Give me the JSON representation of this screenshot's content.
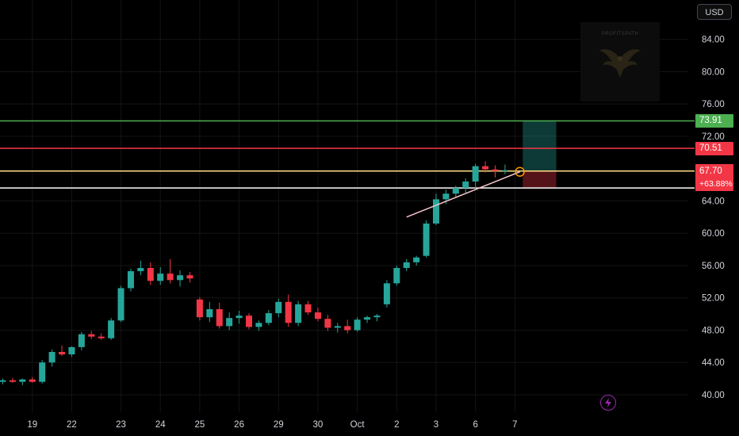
{
  "header": {
    "currency": "USD"
  },
  "watermark": {
    "text": "PROFITSPATH"
  },
  "chart_data": {
    "type": "candlestick",
    "ylim": [
      38.0,
      88.0
    ],
    "y_ticks": [
      40,
      44,
      48,
      52,
      56,
      60,
      64,
      72,
      76,
      80,
      84
    ],
    "x_ticks": [
      {
        "label": "19",
        "index": 3
      },
      {
        "label": "22",
        "index": 7
      },
      {
        "label": "23",
        "index": 12
      },
      {
        "label": "24",
        "index": 16
      },
      {
        "label": "25",
        "index": 20
      },
      {
        "label": "26",
        "index": 24
      },
      {
        "label": "29",
        "index": 28
      },
      {
        "label": "30",
        "index": 32
      },
      {
        "label": "Oct",
        "index": 36
      },
      {
        "label": "2",
        "index": 40
      },
      {
        "label": "3",
        "index": 44
      },
      {
        "label": "6",
        "index": 48
      },
      {
        "label": "7",
        "index": 52
      }
    ],
    "candles": [
      [
        41.6,
        42.0,
        41.3,
        41.8
      ],
      [
        41.8,
        42.1,
        41.5,
        41.6
      ],
      [
        41.6,
        42.0,
        41.2,
        41.9
      ],
      [
        41.9,
        42.2,
        41.5,
        41.6
      ],
      [
        41.6,
        44.3,
        41.4,
        44.0
      ],
      [
        44.0,
        45.6,
        43.5,
        45.3
      ],
      [
        45.3,
        46.1,
        44.8,
        45.0
      ],
      [
        45.0,
        46.0,
        44.7,
        45.9
      ],
      [
        45.9,
        47.8,
        45.5,
        47.5
      ],
      [
        47.5,
        47.9,
        46.9,
        47.2
      ],
      [
        47.2,
        47.6,
        46.8,
        47.0
      ],
      [
        47.0,
        49.5,
        46.8,
        49.2
      ],
      [
        49.2,
        53.5,
        49.0,
        53.2
      ],
      [
        53.2,
        55.6,
        52.8,
        55.3
      ],
      [
        55.3,
        56.6,
        54.8,
        55.7
      ],
      [
        55.7,
        56.4,
        53.6,
        54.1
      ],
      [
        54.1,
        55.8,
        53.6,
        55.0
      ],
      [
        55.0,
        56.8,
        53.8,
        54.2
      ],
      [
        54.2,
        55.4,
        53.4,
        54.8
      ],
      [
        54.8,
        55.2,
        53.9,
        54.4
      ],
      [
        51.8,
        52.1,
        49.2,
        49.6
      ],
      [
        49.6,
        51.5,
        49.0,
        50.6
      ],
      [
        50.6,
        51.4,
        48.2,
        48.5
      ],
      [
        48.5,
        50.2,
        48.0,
        49.5
      ],
      [
        49.5,
        50.4,
        48.8,
        49.8
      ],
      [
        49.8,
        50.1,
        48.1,
        48.4
      ],
      [
        48.4,
        49.2,
        47.9,
        48.9
      ],
      [
        48.9,
        50.5,
        48.6,
        50.1
      ],
      [
        50.1,
        51.9,
        49.6,
        51.5
      ],
      [
        51.5,
        52.4,
        48.4,
        48.9
      ],
      [
        48.9,
        51.6,
        48.5,
        51.2
      ],
      [
        51.2,
        51.6,
        49.9,
        50.2
      ],
      [
        50.2,
        50.8,
        49.1,
        49.4
      ],
      [
        49.4,
        49.9,
        47.9,
        48.3
      ],
      [
        48.3,
        48.9,
        47.7,
        48.5
      ],
      [
        48.5,
        49.3,
        47.6,
        48.0
      ],
      [
        48.0,
        49.6,
        47.8,
        49.3
      ],
      [
        49.3,
        49.8,
        48.9,
        49.6
      ],
      [
        49.6,
        50.0,
        49.1,
        49.8
      ],
      [
        51.2,
        54.2,
        50.8,
        53.8
      ],
      [
        53.8,
        56.0,
        53.5,
        55.7
      ],
      [
        55.7,
        56.8,
        55.3,
        56.4
      ],
      [
        56.4,
        57.2,
        56.0,
        57.0
      ],
      [
        57.2,
        61.6,
        57.0,
        61.2
      ],
      [
        61.2,
        64.9,
        61.0,
        64.2
      ],
      [
        64.2,
        65.4,
        63.6,
        64.9
      ],
      [
        64.9,
        65.9,
        64.5,
        65.6
      ],
      [
        65.6,
        66.8,
        65.0,
        66.4
      ],
      [
        66.4,
        68.6,
        65.5,
        68.3
      ],
      [
        68.3,
        68.9,
        67.5,
        67.9
      ],
      [
        67.9,
        68.4,
        66.9,
        67.7
      ],
      [
        67.7,
        68.5,
        67.3,
        67.8
      ]
    ],
    "horizontal_lines": [
      {
        "name": "green-line",
        "value": 73.91,
        "color": "#4caf50",
        "label": "73.91"
      },
      {
        "name": "red-line",
        "value": 70.51,
        "color": "#f23645",
        "label": "70.51"
      },
      {
        "name": "yellow-line",
        "value": 67.7,
        "color": "#ffe082",
        "label": "67.70"
      },
      {
        "name": "white-line",
        "value": 65.6,
        "color": "#ffffff",
        "label": ""
      }
    ],
    "trendline": {
      "from_index": 41,
      "from_value": 62.0,
      "to_index": 52.5,
      "to_value": 67.6
    },
    "position": {
      "start_index": 52.8,
      "end_index": 56.2,
      "entry": 67.7,
      "target": 73.91,
      "stop": 65.6
    },
    "last_price": {
      "value": "67.70",
      "change": "+63.88%"
    },
    "colors": {
      "up": "#26a69a",
      "down": "#f23645",
      "grid": "#141414",
      "axis_text": "#d1d4dc"
    }
  }
}
